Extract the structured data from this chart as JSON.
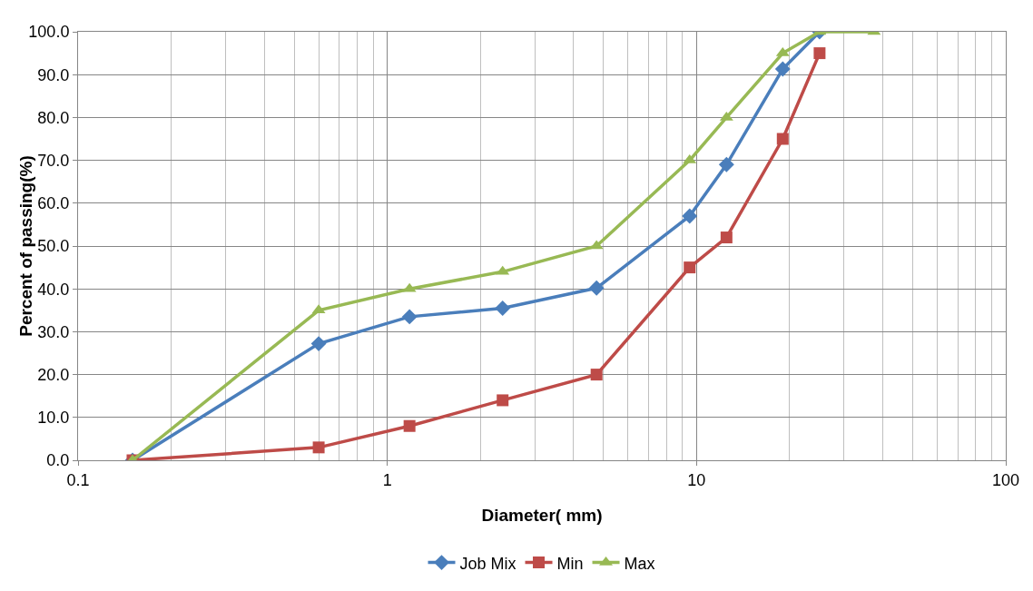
{
  "chart_data": {
    "type": "line",
    "xlabel": "Diameter( mm)",
    "ylabel": "Percent of passing(%)",
    "log": "x",
    "grid": true,
    "legend": "bottom",
    "line_style": "solid",
    "xlim": [
      0.1,
      100
    ],
    "xticks": [
      0.1,
      1,
      10,
      100
    ],
    "ylim": [
      0,
      100
    ],
    "yticks": [
      {
        "value": 0,
        "label": "0.0"
      },
      {
        "value": 10,
        "label": "10.0"
      },
      {
        "value": 20,
        "label": "20.0"
      },
      {
        "value": 30,
        "label": "30.0"
      },
      {
        "value": 40,
        "label": "40.0"
      },
      {
        "value": 50,
        "label": "50.0"
      },
      {
        "value": 60,
        "label": "60.0"
      },
      {
        "value": 70,
        "label": "70.0"
      },
      {
        "value": 80,
        "label": "80.0"
      },
      {
        "value": 90,
        "label": "90.0"
      },
      {
        "value": 100,
        "label": "100.0"
      }
    ],
    "series": [
      {
        "name": "Job Mix",
        "color": "#4a7ebb",
        "marker": "diamond",
        "x": [
          0.15,
          0.6,
          1.18,
          2.36,
          4.75,
          9.5,
          12.5,
          19,
          25
        ],
        "values": [
          0,
          27.2,
          33.5,
          35.5,
          40.2,
          57,
          69,
          91.3,
          100
        ]
      },
      {
        "name": "Min",
        "color": "#be4b48",
        "marker": "square",
        "x": [
          0.15,
          0.6,
          1.18,
          2.36,
          4.75,
          9.5,
          12.5,
          19,
          25
        ],
        "values": [
          0,
          3,
          8,
          14,
          20,
          45,
          52,
          75,
          95
        ]
      },
      {
        "name": "Max",
        "color": "#98b954",
        "marker": "triangle",
        "x": [
          0.15,
          0.6,
          1.18,
          2.36,
          4.75,
          9.5,
          12.5,
          19,
          25,
          37.5
        ],
        "values": [
          0,
          35,
          40,
          44,
          50,
          70,
          80,
          95,
          100,
          100
        ]
      }
    ]
  }
}
